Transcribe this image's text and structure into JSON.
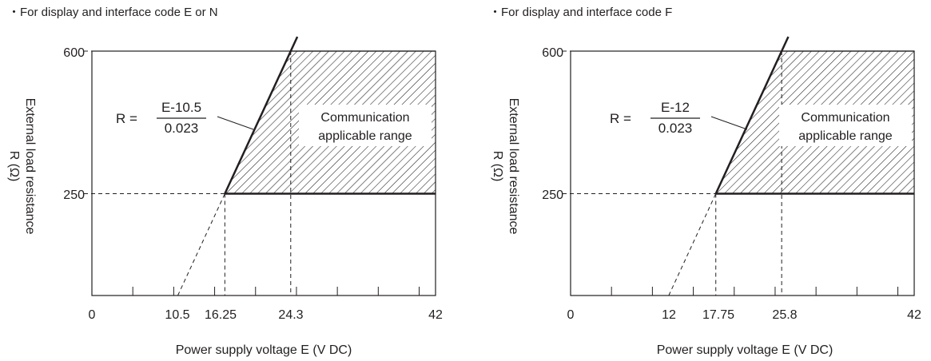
{
  "charts": [
    {
      "heading": "・For display and interface code E or N",
      "formula": {
        "lhs": "R =",
        "numerator": "E-10.5",
        "denominator": "0.023"
      },
      "region_label": [
        "Communication",
        "applicable range"
      ],
      "ylabel": [
        "External load resistance",
        "R (Ω)"
      ],
      "xlabel": "Power supply voltage  E (V DC)",
      "x_tick_labels": [
        "0",
        "10.5",
        "16.25",
        "24.3",
        "42"
      ],
      "y_tick_labels": [
        "600",
        "250"
      ]
    },
    {
      "heading": "・For display and interface code F",
      "formula": {
        "lhs": "R =",
        "numerator": "E-12",
        "denominator": "0.023"
      },
      "region_label": [
        "Communication",
        "applicable range"
      ],
      "ylabel": [
        "External load resistance",
        "R (Ω)"
      ],
      "xlabel": "Power supply voltage  E (V DC)",
      "x_tick_labels": [
        "0",
        "12",
        "17.75",
        "25.8",
        "42"
      ],
      "y_tick_labels": [
        "600",
        "250"
      ]
    }
  ],
  "chart_data": [
    {
      "type": "area",
      "title": "・For display and interface code E or N",
      "xlabel": "Power supply voltage  E (V DC)",
      "ylabel": "External load resistance R (Ω)",
      "xlim": [
        0,
        42
      ],
      "ylim": [
        0,
        600
      ],
      "x_ticks": [
        0,
        10.5,
        16.25,
        24.3,
        42
      ],
      "y_ticks": [
        250,
        600
      ],
      "minor_x_ticks": [
        5,
        10,
        15,
        20,
        25,
        30,
        35,
        40
      ],
      "grid": false,
      "boundary_line": {
        "formula": "R = (E-10.5)/0.023",
        "x_intercept": 10.5,
        "points": [
          [
            10.5,
            0
          ],
          [
            16.25,
            250
          ],
          [
            24.3,
            600
          ]
        ]
      },
      "region": {
        "name": "Communication applicable range",
        "polygon": [
          [
            16.25,
            250
          ],
          [
            42,
            250
          ],
          [
            42,
            600
          ],
          [
            24.3,
            600
          ]
        ]
      },
      "reference_lines": {
        "horizontal": [
          250,
          600
        ],
        "vertical": [
          16.25,
          24.3
        ]
      }
    },
    {
      "type": "area",
      "title": "・For display and interface code F",
      "xlabel": "Power supply voltage  E (V DC)",
      "ylabel": "External load resistance R (Ω)",
      "xlim": [
        0,
        42
      ],
      "ylim": [
        0,
        600
      ],
      "x_ticks": [
        0,
        12,
        17.75,
        25.8,
        42
      ],
      "y_ticks": [
        250,
        600
      ],
      "minor_x_ticks": [
        5,
        10,
        15,
        20,
        25,
        30,
        35,
        40
      ],
      "grid": false,
      "boundary_line": {
        "formula": "R = (E-12)/0.023",
        "x_intercept": 12,
        "points": [
          [
            12,
            0
          ],
          [
            17.75,
            250
          ],
          [
            25.8,
            600
          ]
        ]
      },
      "region": {
        "name": "Communication applicable range",
        "polygon": [
          [
            17.75,
            250
          ],
          [
            42,
            250
          ],
          [
            42,
            600
          ],
          [
            25.8,
            600
          ]
        ]
      },
      "reference_lines": {
        "horizontal": [
          250,
          600
        ],
        "vertical": [
          17.75,
          25.8
        ]
      }
    }
  ]
}
